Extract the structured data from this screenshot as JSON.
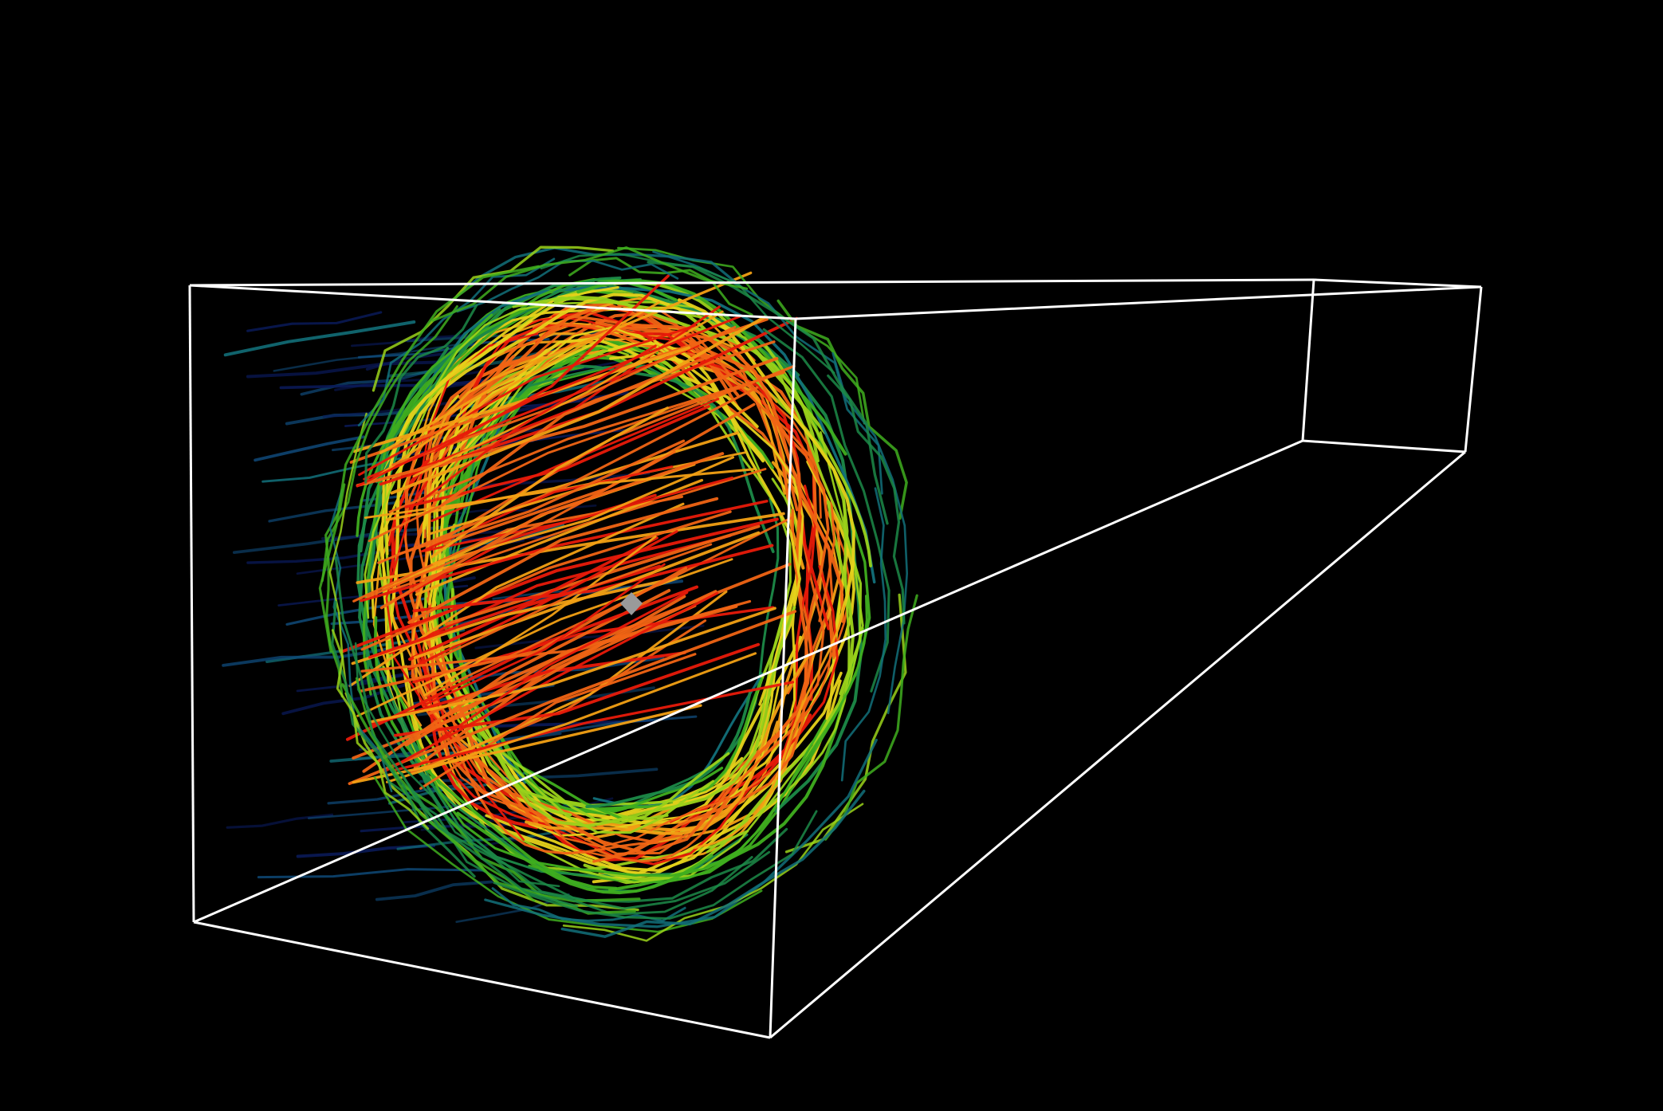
{
  "viewport": {
    "background": "#000000",
    "box_outline_color": "#ffffff",
    "focal_glyph_color": "#9a9a9a"
  },
  "streamlines": {
    "colormap": [
      "#0a1a5a",
      "#0f4a7a",
      "#12707a",
      "#1c8a48",
      "#3fae1f",
      "#9ad21a",
      "#e6d21a",
      "#f2a014",
      "#f06414",
      "#e81a0a"
    ],
    "count": 260
  }
}
